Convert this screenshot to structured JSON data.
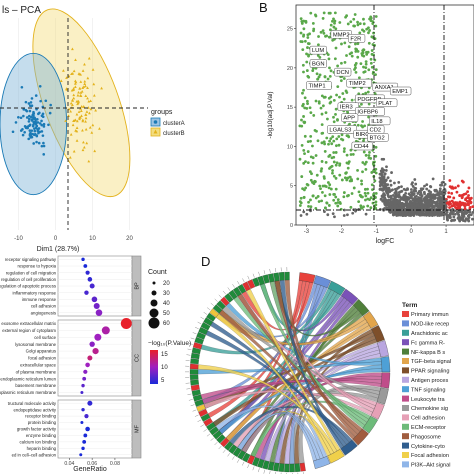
{
  "panels": {
    "A": {
      "title": "ls – PCA"
    },
    "B": {
      "letter": "B"
    },
    "D": {
      "letter": "D"
    }
  },
  "chart_data": [
    {
      "id": "pca",
      "type": "scatter",
      "title": "ls – PCA",
      "xlabel": "Dim1 (28.7%)",
      "ylabel": "",
      "xlim": [
        -15,
        25
      ],
      "ylim": [
        -16,
        14
      ],
      "x_ticks": [
        -10,
        0,
        10,
        20
      ],
      "legend": {
        "title": "groups",
        "position": "right",
        "entries": [
          "clusterA",
          "clusterB"
        ]
      },
      "series": [
        {
          "name": "clusterA",
          "color": "#1b7ab5",
          "fill": "#7fb3d8",
          "ellipse": {
            "cx": -6,
            "cy": -1,
            "rx": 9,
            "ry": 10
          }
        },
        {
          "name": "clusterB",
          "color": "#e3b21c",
          "fill": "#f3dd7f",
          "ellipse": {
            "cx": 7,
            "cy": 2,
            "rx": 10,
            "ry": 14,
            "angle": -20
          }
        }
      ]
    },
    {
      "id": "volcano",
      "type": "scatter",
      "xlabel": "logFC",
      "ylabel": "-log10(adj.P.Val)",
      "xlim": [
        -3.3,
        1.8
      ],
      "ylim": [
        0,
        28
      ],
      "x_ticks": [
        -3,
        -2,
        -1,
        0,
        1
      ],
      "thresholds": {
        "logfc": [
          -1,
          1
        ],
        "p": 2
      },
      "colors": {
        "down": "#5aa84a",
        "none": "#666666",
        "up": "#e03030"
      },
      "gene_labels": [
        "MMP2",
        "F2R",
        "LUM",
        "BGN",
        "TIMP1",
        "DCN",
        "TIMP2",
        "ANXA1",
        "PDGFRB",
        "PLAT",
        "IER3",
        "EMP1",
        "IGFBP6",
        "APP",
        "IL18",
        "LGALS3",
        "BIRC3",
        "CD2",
        "BTG2",
        "CD44"
      ]
    },
    {
      "id": "go-dot",
      "type": "scatter",
      "xlabel": "GeneRatio",
      "x_ticks": [
        0.04,
        0.06,
        0.08
      ],
      "xlim": [
        0.03,
        0.095
      ],
      "size_legend": {
        "title": "Count",
        "values": [
          20,
          30,
          40,
          50,
          60
        ]
      },
      "color_legend": {
        "title": "−log₁₀(P.Value)",
        "values": [
          15,
          10,
          5
        ]
      },
      "facets": [
        {
          "name": "BP",
          "terms": [
            {
              "label": "receptor signaling pathway",
              "x": 0.052,
              "count": 22,
              "p": 3
            },
            {
              "label": "response to hypoxia",
              "x": 0.054,
              "count": 24,
              "p": 3
            },
            {
              "label": "regulation of cell migration",
              "x": 0.056,
              "count": 26,
              "p": 4
            },
            {
              "label": "regulation of cell proliferation",
              "x": 0.058,
              "count": 28,
              "p": 4
            },
            {
              "label": "regulation of apoptotic process",
              "x": 0.06,
              "count": 30,
              "p": 5
            },
            {
              "label": "inflammatory response",
              "x": 0.055,
              "count": 27,
              "p": 5
            },
            {
              "label": "immune response",
              "x": 0.062,
              "count": 33,
              "p": 6
            },
            {
              "label": "cell adhesion",
              "x": 0.064,
              "count": 35,
              "p": 7
            },
            {
              "label": "angiogenesis",
              "x": 0.066,
              "count": 38,
              "p": 8
            }
          ]
        },
        {
          "name": "CC",
          "terms": [
            {
              "label": "exosome extracellular matrix",
              "x": 0.09,
              "count": 60,
              "p": 15
            },
            {
              "label": "external region of cytoplasm",
              "x": 0.072,
              "count": 45,
              "p": 10
            },
            {
              "label": "cell surface",
              "x": 0.065,
              "count": 40,
              "p": 9
            },
            {
              "label": "lysosomal membrane",
              "x": 0.06,
              "count": 32,
              "p": 8
            },
            {
              "label": "Golgi apparatus",
              "x": 0.063,
              "count": 36,
              "p": 11
            },
            {
              "label": "focal adhesion",
              "x": 0.058,
              "count": 30,
              "p": 12
            },
            {
              "label": "extracellular space",
              "x": 0.056,
              "count": 28,
              "p": 9
            },
            {
              "label": "of plasma membrane",
              "x": 0.054,
              "count": 26,
              "p": 8
            },
            {
              "label": "endoplasmic reticulum lumen",
              "x": 0.053,
              "count": 24,
              "p": 7
            },
            {
              "label": "basement membrane",
              "x": 0.052,
              "count": 22,
              "p": 6
            },
            {
              "label": "endoplasmic reticulum membrane",
              "x": 0.051,
              "count": 20,
              "p": 5
            }
          ]
        },
        {
          "name": "MF",
          "terms": [
            {
              "label": "tructural molecule activity",
              "x": 0.058,
              "count": 30,
              "p": 4
            },
            {
              "label": "endopeptidase activity",
              "x": 0.052,
              "count": 22,
              "p": 4
            },
            {
              "label": "receptor binding",
              "x": 0.055,
              "count": 26,
              "p": 5
            },
            {
              "label": "protein binding",
              "x": 0.051,
              "count": 20,
              "p": 3
            },
            {
              "label": "growth factor activity",
              "x": 0.056,
              "count": 28,
              "p": 3
            },
            {
              "label": "enzyme binding",
              "x": 0.054,
              "count": 24,
              "p": 3
            },
            {
              "label": "calcium ion binding",
              "x": 0.053,
              "count": 24,
              "p": 3
            },
            {
              "label": "heparin binding",
              "x": 0.052,
              "count": 22,
              "p": 3
            },
            {
              "label": "ed in cell–cell adhesion",
              "x": 0.05,
              "count": 20,
              "p": 3
            }
          ]
        }
      ]
    },
    {
      "id": "chord",
      "type": "other",
      "legend": {
        "title": "Term",
        "entries": [
          {
            "label": "Primary immun",
            "color": "#e8423c"
          },
          {
            "label": "NOD-like recep",
            "color": "#6a8fd8"
          },
          {
            "label": "Arachidonic ac",
            "color": "#3a9f98"
          },
          {
            "label": "Fc gamma R-",
            "color": "#7a52b8"
          },
          {
            "label": "NF-kappa B s",
            "color": "#4f7f3a"
          },
          {
            "label": "TGF-beta signal",
            "color": "#e2a54b"
          },
          {
            "label": "PPAR signaling",
            "color": "#7e4f2a"
          },
          {
            "label": "Antigen proces",
            "color": "#b9a6e0"
          },
          {
            "label": "TNF signaling",
            "color": "#4ea0d6"
          },
          {
            "label": "Leukocyte tra",
            "color": "#c04d8a"
          },
          {
            "label": "Chemokine sig",
            "color": "#9a9a9a"
          },
          {
            "label": "Cell adhesion",
            "color": "#e6a0b6"
          },
          {
            "label": "ECM-receptor",
            "color": "#6dbb7a"
          },
          {
            "label": "Phagosome",
            "color": "#a05c3e"
          },
          {
            "label": "Cytokine-cyto",
            "color": "#2f5d8e"
          },
          {
            "label": "Focal adhesion",
            "color": "#f0d04a"
          },
          {
            "label": "PI3K–Akt signal",
            "color": "#8fb5e8"
          }
        ]
      }
    }
  ]
}
